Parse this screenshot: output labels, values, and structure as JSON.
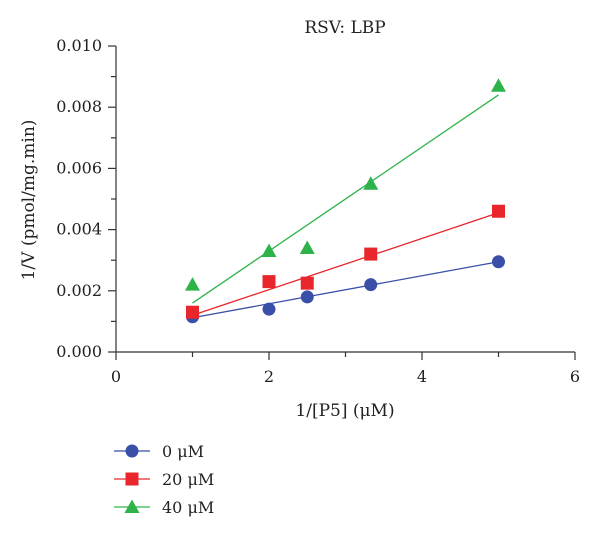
{
  "chart_data": {
    "type": "scatter",
    "title": "RSV: LBP",
    "xlabel": "1/[P5] (μM)",
    "ylabel": "1/V (pmol/mg.min)",
    "xlim": [
      0,
      6
    ],
    "ylim": [
      0,
      0.01
    ],
    "x_ticks": [
      "0",
      "2",
      "4",
      "6"
    ],
    "y_ticks": [
      "0.000",
      "0.002",
      "0.004",
      "0.006",
      "0.008",
      "0.010"
    ],
    "grid": false,
    "legend_position": "bottom-left",
    "series": [
      {
        "name": "0 μM",
        "color": "#3a4fa8",
        "marker": "circle",
        "x": [
          1,
          2,
          2.5,
          3.33,
          5
        ],
        "y": [
          0.00115,
          0.0014,
          0.0018,
          0.0022,
          0.00295
        ],
        "fit": [
          [
            1,
            0.00112
          ],
          [
            5,
            0.00295
          ]
        ]
      },
      {
        "name": "20 μM",
        "color": "#e8262b",
        "marker": "square",
        "x": [
          1,
          2,
          2.5,
          3.33,
          5
        ],
        "y": [
          0.0013,
          0.0023,
          0.00225,
          0.0032,
          0.0046
        ],
        "fit": [
          [
            1,
            0.0012
          ],
          [
            5,
            0.00455
          ]
        ]
      },
      {
        "name": "40 μM",
        "color": "#2db34a",
        "marker": "triangle",
        "x": [
          1,
          2,
          2.5,
          3.33,
          5
        ],
        "y": [
          0.0022,
          0.0033,
          0.0034,
          0.0055,
          0.0087
        ],
        "fit": [
          [
            1,
            0.0016
          ],
          [
            5,
            0.0084
          ]
        ]
      }
    ]
  }
}
